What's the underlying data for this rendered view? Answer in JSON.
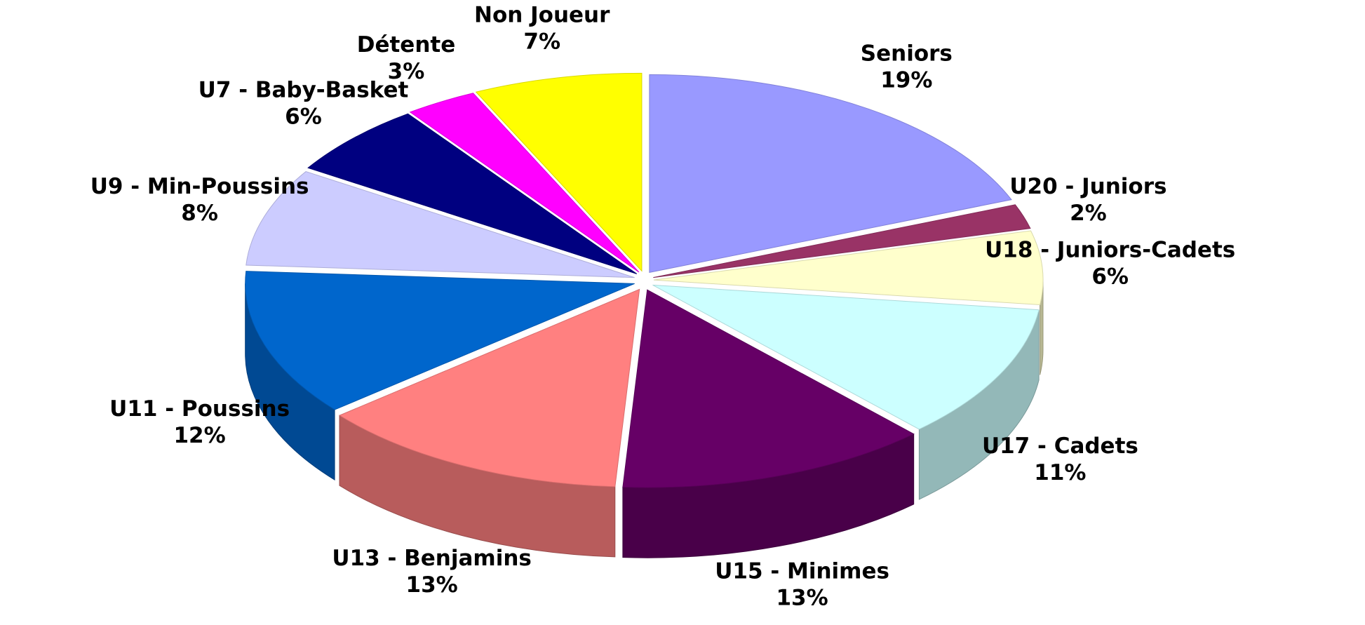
{
  "chart_data": {
    "type": "pie",
    "categories": [
      "Seniors",
      "U20 - Juniors",
      "U18 - Juniors-Cadets",
      "U17 - Cadets",
      "U15 - Minimes",
      "U13 - Benjamins",
      "U11 - Poussins",
      "U9 - Min-Poussins",
      "U7 - Baby-Basket",
      "Détente",
      "Non Joueur"
    ],
    "values": [
      19,
      2,
      6,
      11,
      13,
      13,
      12,
      8,
      6,
      3,
      7
    ],
    "value_labels": [
      "19%",
      "2%",
      "6%",
      "11%",
      "13%",
      "13%",
      "12%",
      "8%",
      "6%",
      "3%",
      "7%"
    ],
    "colors": [
      "#9999ff",
      "#993366",
      "#ffffcc",
      "#ccffff",
      "#660066",
      "#ff8080",
      "#0066cc",
      "#ccccff",
      "#000080",
      "#ff00ff",
      "#ffff00"
    ]
  }
}
